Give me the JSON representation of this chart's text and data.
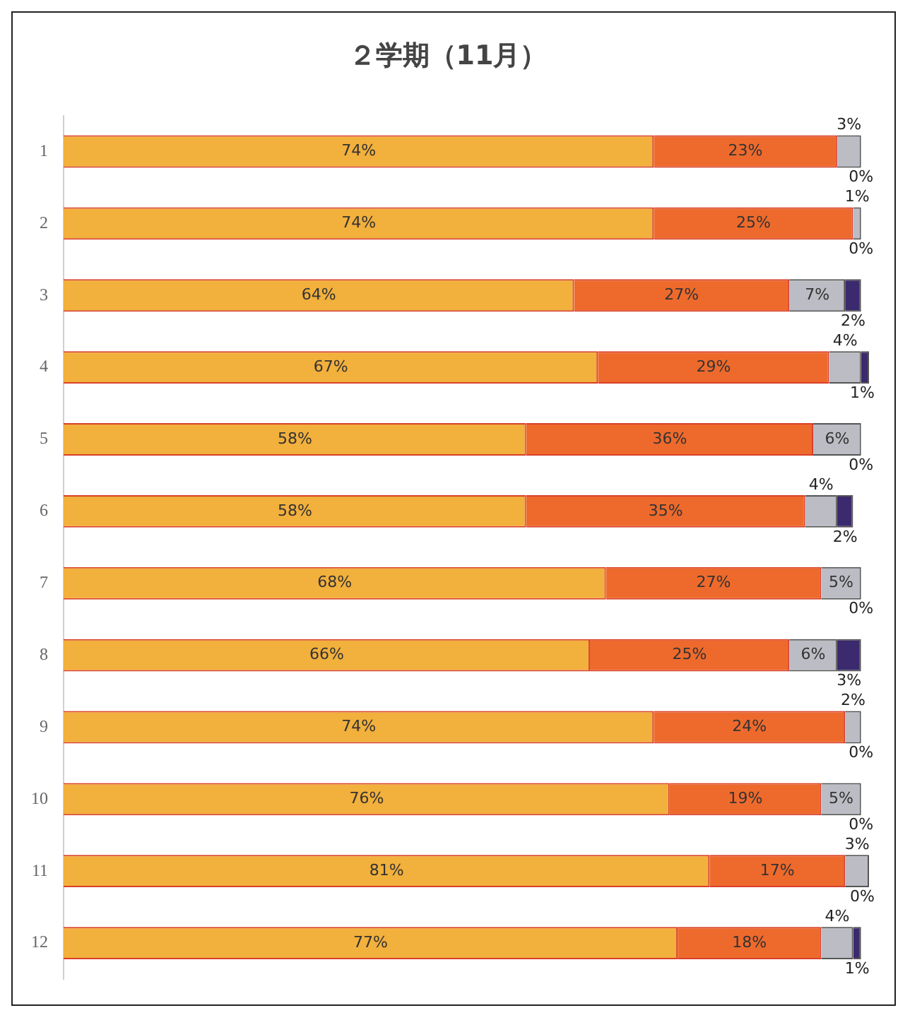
{
  "chart_data": {
    "type": "bar",
    "title": "２学期（11月）",
    "orientation": "horizontal",
    "stacked": true,
    "categories": [
      "1",
      "2",
      "3",
      "4",
      "5",
      "6",
      "7",
      "8",
      "9",
      "10",
      "11",
      "12"
    ],
    "xlim": [
      0,
      101
    ],
    "tick_labels": "y",
    "grid": false,
    "legend": false,
    "series": [
      {
        "color": "#f2b03c",
        "values": [
          74,
          74,
          64,
          67,
          58,
          58,
          68,
          66,
          74,
          76,
          81,
          77
        ],
        "value_labels": [
          "74%",
          "74%",
          "64%",
          "67%",
          "58%",
          "58%",
          "68%",
          "66%",
          "74%",
          "76%",
          "81%",
          "77%"
        ]
      },
      {
        "color": "#ee6a2c",
        "values": [
          23,
          25,
          27,
          29,
          36,
          35,
          27,
          25,
          24,
          19,
          17,
          18
        ],
        "value_labels": [
          "23%",
          "25%",
          "27%",
          "29%",
          "36%",
          "35%",
          "27%",
          "25%",
          "24%",
          "19%",
          "17%",
          "18%"
        ]
      },
      {
        "color": "#bcbcc4",
        "values": [
          3,
          1,
          7,
          4,
          6,
          4,
          5,
          6,
          2,
          5,
          3,
          4
        ],
        "value_labels": [
          "3%",
          "1%",
          "7%",
          "4%",
          "6%",
          "4%",
          "5%",
          "6%",
          "2%",
          "5%",
          "3%",
          "4%"
        ]
      },
      {
        "color": "#3b2a6e",
        "values": [
          0,
          0,
          2,
          1,
          0,
          2,
          0,
          3,
          0,
          0,
          0,
          1
        ],
        "value_labels": [
          "0%",
          "0%",
          "2%",
          "1%",
          "0%",
          "2%",
          "0%",
          "3%",
          "0%",
          "0%",
          "0%",
          "1%"
        ]
      }
    ]
  }
}
